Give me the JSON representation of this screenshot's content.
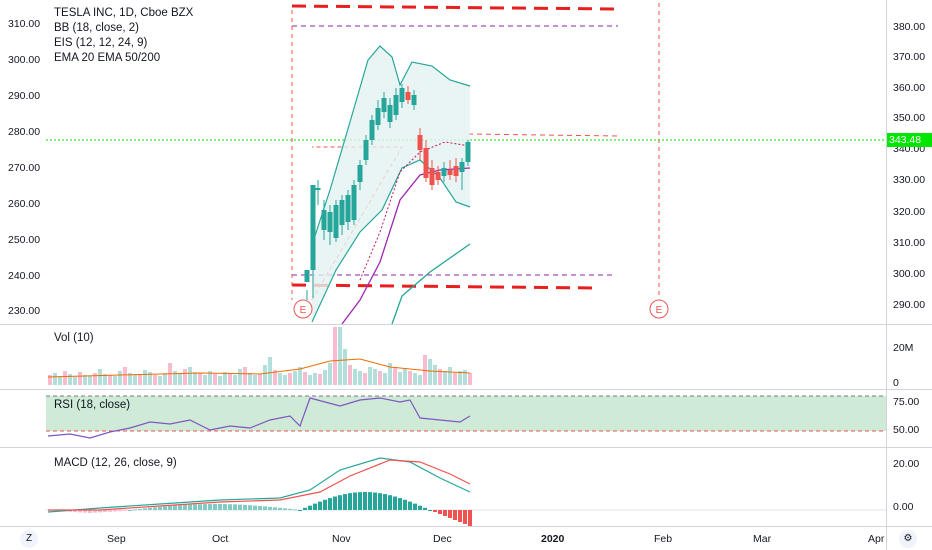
{
  "main": {
    "legend": [
      "TESLA INC, 1D, Cboe BZX",
      "BB (18, close, 2)",
      "EIS (12, 12, 24, 9)",
      "EMA 20 EMA 50/200"
    ],
    "left_axis": [
      "310.00",
      "300.00",
      "290.00",
      "280.00",
      "270.00",
      "260.00",
      "250.00",
      "240.00",
      "230.00"
    ],
    "right_axis": [
      "380.00",
      "370.00",
      "360.00",
      "350.00",
      "340.00",
      "330.00",
      "320.00",
      "310.00",
      "300.00",
      "290.00"
    ],
    "last_price": "343.48",
    "earnings_markers": [
      "E",
      "E"
    ]
  },
  "volume": {
    "legend": "Vol (10)",
    "axis": [
      "20M",
      "0"
    ]
  },
  "rsi": {
    "legend": "RSI (18, close)",
    "axis": [
      "75.00",
      "50.00"
    ]
  },
  "macd": {
    "legend": "MACD (12, 26, close, 9)",
    "axis": [
      "20.00",
      "0.00"
    ]
  },
  "time_axis": [
    "Sep",
    "Oct",
    "Nov",
    "Dec",
    "2020",
    "Feb",
    "Mar",
    "Apr"
  ],
  "corner_buttons": {
    "left": "Z",
    "right": "⚙"
  },
  "colors": {
    "up": "#26a69a",
    "down": "#ef5350",
    "bb": "#26a69a",
    "ema": "#9c27b0",
    "price_line": "#00e600",
    "rsi_fill": "#cfead7"
  }
}
